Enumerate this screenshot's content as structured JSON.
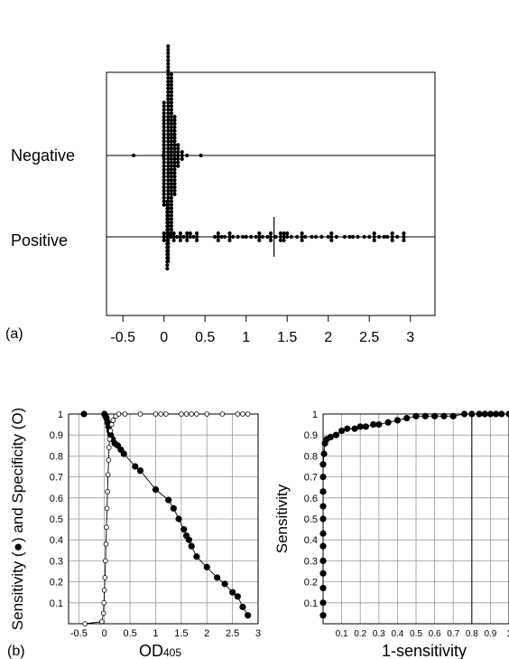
{
  "chart_data": [
    {
      "type": "scatter",
      "panel_label": "(a)",
      "xlabel": "",
      "ylabel": "",
      "xlim": [
        -0.7,
        3.3
      ],
      "xticks": [
        "-0.5",
        "0",
        "0.5",
        "1",
        "1.5",
        "2",
        "2.5",
        "3"
      ],
      "xtick_values": [
        -0.5,
        0,
        0.5,
        1,
        1.5,
        2,
        2.5,
        3
      ],
      "row_labels": [
        "Negative",
        "Positive"
      ],
      "cutoff": 1.34,
      "series": [
        {
          "name": "Negative",
          "points": [
            {
              "x": -0.37,
              "n": 1
            },
            {
              "x": -0.01,
              "n": 1
            },
            {
              "x": 0.0,
              "n": 30
            },
            {
              "x": 0.05,
              "n": 62
            },
            {
              "x": 0.09,
              "n": 47
            },
            {
              "x": 0.13,
              "n": 23
            },
            {
              "x": 0.17,
              "n": 7
            },
            {
              "x": 0.22,
              "n": 3
            },
            {
              "x": 0.28,
              "n": 1
            },
            {
              "x": 0.45,
              "n": 1
            }
          ]
        },
        {
          "name": "Positive",
          "points": [
            {
              "x": 0.0,
              "n": 3
            },
            {
              "x": 0.04,
              "n": 20
            },
            {
              "x": 0.08,
              "n": 2
            },
            {
              "x": 0.12,
              "n": 3
            },
            {
              "x": 0.16,
              "n": 1
            },
            {
              "x": 0.2,
              "n": 3
            },
            {
              "x": 0.24,
              "n": 1
            },
            {
              "x": 0.28,
              "n": 3
            },
            {
              "x": 0.32,
              "n": 2
            },
            {
              "x": 0.36,
              "n": 1
            },
            {
              "x": 0.4,
              "n": 3
            },
            {
              "x": 0.62,
              "n": 1
            },
            {
              "x": 0.66,
              "n": 3
            },
            {
              "x": 0.7,
              "n": 1
            },
            {
              "x": 0.74,
              "n": 1
            },
            {
              "x": 0.8,
              "n": 3
            },
            {
              "x": 0.84,
              "n": 1
            },
            {
              "x": 0.9,
              "n": 1
            },
            {
              "x": 0.96,
              "n": 1
            },
            {
              "x": 1.0,
              "n": 1
            },
            {
              "x": 1.06,
              "n": 1
            },
            {
              "x": 1.12,
              "n": 1
            },
            {
              "x": 1.16,
              "n": 3
            },
            {
              "x": 1.2,
              "n": 1
            },
            {
              "x": 1.26,
              "n": 1
            },
            {
              "x": 1.3,
              "n": 3
            },
            {
              "x": 1.36,
              "n": 1
            },
            {
              "x": 1.42,
              "n": 3
            },
            {
              "x": 1.46,
              "n": 3
            },
            {
              "x": 1.5,
              "n": 2
            },
            {
              "x": 1.55,
              "n": 1
            },
            {
              "x": 1.62,
              "n": 1
            },
            {
              "x": 1.68,
              "n": 3
            },
            {
              "x": 1.72,
              "n": 1
            },
            {
              "x": 1.8,
              "n": 1
            },
            {
              "x": 1.85,
              "n": 1
            },
            {
              "x": 1.92,
              "n": 1
            },
            {
              "x": 2.0,
              "n": 1
            },
            {
              "x": 2.04,
              "n": 3
            },
            {
              "x": 2.1,
              "n": 1
            },
            {
              "x": 2.2,
              "n": 1
            },
            {
              "x": 2.26,
              "n": 1
            },
            {
              "x": 2.3,
              "n": 1
            },
            {
              "x": 2.36,
              "n": 1
            },
            {
              "x": 2.44,
              "n": 1
            },
            {
              "x": 2.5,
              "n": 1
            },
            {
              "x": 2.56,
              "n": 3
            },
            {
              "x": 2.62,
              "n": 1
            },
            {
              "x": 2.68,
              "n": 1
            },
            {
              "x": 2.72,
              "n": 1
            },
            {
              "x": 2.78,
              "n": 3
            },
            {
              "x": 2.84,
              "n": 1
            },
            {
              "x": 2.92,
              "n": 3
            }
          ]
        }
      ]
    },
    {
      "type": "line",
      "panel_label": "(b)",
      "xlabel_main": "OD",
      "xlabel_sub": "405",
      "ylabel": "Sensitivity (●) and Specificity (O)",
      "xlim": [
        -0.7,
        3.0
      ],
      "ylim": [
        0,
        1
      ],
      "grid": true,
      "xticks": [
        "-0.5",
        "0",
        "0.5",
        "1",
        "1.5",
        "2",
        "2.5",
        "3"
      ],
      "xtick_values": [
        -0.5,
        0,
        0.5,
        1,
        1.5,
        2,
        2.5,
        3
      ],
      "yticks": [
        "0.1",
        "0.2",
        "0.3",
        "0.4",
        "0.5",
        "0.6",
        "0.7",
        "0.8",
        "0.9",
        "1"
      ],
      "ytick_values": [
        0.1,
        0.2,
        0.3,
        0.4,
        0.5,
        0.6,
        0.7,
        0.8,
        0.9,
        1
      ],
      "series": [
        {
          "marker": "filled",
          "points": [
            [
              -0.4,
              1.0
            ],
            [
              0.0,
              1.0
            ],
            [
              0.02,
              0.99
            ],
            [
              0.04,
              0.98
            ],
            [
              0.06,
              0.96
            ],
            [
              0.08,
              0.94
            ],
            [
              0.1,
              0.92
            ],
            [
              0.12,
              0.9
            ],
            [
              0.16,
              0.88
            ],
            [
              0.2,
              0.86
            ],
            [
              0.26,
              0.85
            ],
            [
              0.32,
              0.83
            ],
            [
              0.38,
              0.81
            ],
            [
              0.6,
              0.75
            ],
            [
              0.7,
              0.73
            ],
            [
              1.0,
              0.64
            ],
            [
              1.25,
              0.59
            ],
            [
              1.35,
              0.55
            ],
            [
              1.45,
              0.5
            ],
            [
              1.55,
              0.45
            ],
            [
              1.6,
              0.42
            ],
            [
              1.65,
              0.4
            ],
            [
              1.7,
              0.37
            ],
            [
              1.8,
              0.32
            ],
            [
              2.0,
              0.27
            ],
            [
              2.2,
              0.22
            ],
            [
              2.35,
              0.19
            ],
            [
              2.5,
              0.15
            ],
            [
              2.6,
              0.13
            ],
            [
              2.7,
              0.08
            ],
            [
              2.8,
              0.04
            ]
          ]
        },
        {
          "marker": "open",
          "points": [
            [
              -0.38,
              0.0
            ],
            [
              -0.05,
              0.01
            ],
            [
              -0.02,
              0.05
            ],
            [
              -0.01,
              0.1
            ],
            [
              0.0,
              0.16
            ],
            [
              0.01,
              0.22
            ],
            [
              0.02,
              0.3
            ],
            [
              0.03,
              0.38
            ],
            [
              0.04,
              0.46
            ],
            [
              0.05,
              0.55
            ],
            [
              0.06,
              0.63
            ],
            [
              0.07,
              0.71
            ],
            [
              0.08,
              0.78
            ],
            [
              0.09,
              0.84
            ],
            [
              0.1,
              0.88
            ],
            [
              0.12,
              0.92
            ],
            [
              0.14,
              0.95
            ],
            [
              0.17,
              0.97
            ],
            [
              0.22,
              0.99
            ],
            [
              0.28,
              1.0
            ],
            [
              0.4,
              1.0
            ],
            [
              0.7,
              1.0
            ],
            [
              1.0,
              1.0
            ],
            [
              1.1,
              1.0
            ],
            [
              1.2,
              1.0
            ],
            [
              1.5,
              1.0
            ],
            [
              1.6,
              1.0
            ],
            [
              1.7,
              1.0
            ],
            [
              1.8,
              1.0
            ],
            [
              2.0,
              1.0
            ],
            [
              2.3,
              1.0
            ],
            [
              2.6,
              1.0
            ],
            [
              2.7,
              1.0
            ],
            [
              2.8,
              1.0
            ]
          ]
        }
      ]
    },
    {
      "type": "line",
      "xlabel": "1-sensitivity",
      "ylabel": "Sensitivity",
      "xlim": [
        0,
        1
      ],
      "ylim": [
        0,
        1
      ],
      "grid": true,
      "xticks": [
        "0.1",
        "0.2",
        "0.3",
        "0.4",
        "0.5",
        "0.6",
        "0.7",
        "0.8",
        "0.9",
        "1"
      ],
      "xtick_values": [
        0.1,
        0.2,
        0.3,
        0.4,
        0.5,
        0.6,
        0.7,
        0.8,
        0.9,
        1
      ],
      "yticks": [
        "0.1",
        "0.2",
        "0.3",
        "0.4",
        "0.5",
        "0.6",
        "0.7",
        "0.8",
        "0.9",
        "1"
      ],
      "ytick_values": [
        0.1,
        0.2,
        0.3,
        0.4,
        0.5,
        0.6,
        0.7,
        0.8,
        0.9,
        1
      ],
      "reference_x": 0.8,
      "series": [
        {
          "marker": "filled",
          "points": [
            [
              0.0,
              0.04
            ],
            [
              0.0,
              0.1
            ],
            [
              0.0,
              0.17
            ],
            [
              0.0,
              0.24
            ],
            [
              0.0,
              0.3
            ],
            [
              0.0,
              0.37
            ],
            [
              0.0,
              0.43
            ],
            [
              0.0,
              0.5
            ],
            [
              0.0,
              0.56
            ],
            [
              0.0,
              0.63
            ],
            [
              0.0,
              0.7
            ],
            [
              0.0,
              0.76
            ],
            [
              0.005,
              0.81
            ],
            [
              0.01,
              0.86
            ],
            [
              0.02,
              0.88
            ],
            [
              0.04,
              0.89
            ],
            [
              0.07,
              0.9
            ],
            [
              0.1,
              0.92
            ],
            [
              0.13,
              0.93
            ],
            [
              0.17,
              0.93
            ],
            [
              0.2,
              0.94
            ],
            [
              0.23,
              0.94
            ],
            [
              0.27,
              0.95
            ],
            [
              0.3,
              0.95
            ],
            [
              0.35,
              0.96
            ],
            [
              0.4,
              0.97
            ],
            [
              0.45,
              0.98
            ],
            [
              0.5,
              0.99
            ],
            [
              0.55,
              0.99
            ],
            [
              0.6,
              0.99
            ],
            [
              0.65,
              0.99
            ],
            [
              0.7,
              0.99
            ],
            [
              0.76,
              1.0
            ],
            [
              0.8,
              1.0
            ],
            [
              0.84,
              1.0
            ],
            [
              0.87,
              1.0
            ],
            [
              0.9,
              1.0
            ],
            [
              0.93,
              1.0
            ],
            [
              0.96,
              1.0
            ],
            [
              1.0,
              1.0
            ]
          ]
        }
      ]
    }
  ]
}
